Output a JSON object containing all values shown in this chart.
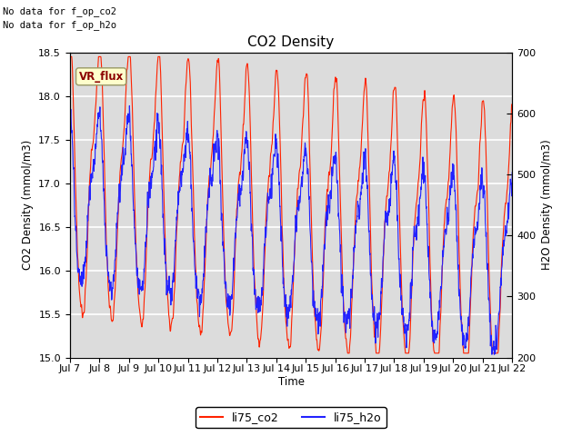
{
  "title": "CO2 Density",
  "xlabel": "Time",
  "ylabel_left": "CO2 Density (mmol/m3)",
  "ylabel_right": "H2O Density (mmol/m3)",
  "ylim_left": [
    15.0,
    18.5
  ],
  "ylim_right": [
    200,
    700
  ],
  "xtick_labels": [
    "Jul 7",
    "Jul 8",
    "Jul 9",
    "Jul 10",
    "Jul 11",
    "Jul 12",
    "Jul 13",
    "Jul 14",
    "Jul 15",
    "Jul 16",
    "Jul 17",
    "Jul 18",
    "Jul 19",
    "Jul 20",
    "Jul 21",
    "Jul 22"
  ],
  "color_co2": "#FF2200",
  "color_h2o": "#2222FF",
  "legend_labels": [
    "li75_co2",
    "li75_h2o"
  ],
  "annotation_text1": "No data for f_op_co2",
  "annotation_text2": "No data for f_op_h2o",
  "vr_flux_label": "VR_flux",
  "bg_color": "#DCDCDC",
  "grid_color": "#FFFFFF",
  "title_fontsize": 11,
  "axis_fontsize": 8.5,
  "tick_fontsize": 8,
  "legend_fontsize": 9,
  "annot_fontsize": 7.5
}
